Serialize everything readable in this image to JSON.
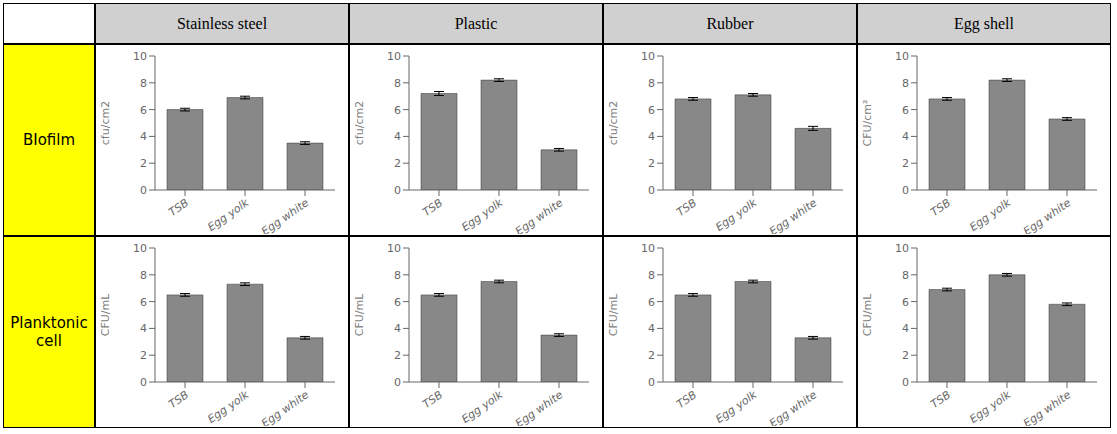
{
  "chart_data": [
    {
      "type": "bar",
      "title": "Stainless steel",
      "annotations": [
        "BIofilm"
      ],
      "categories": [
        "TSB",
        "Egg yolk",
        "Egg white"
      ],
      "values": [
        6.0,
        6.9,
        3.5
      ],
      "errors": [
        0.1,
        0.1,
        0.1
      ],
      "color": "#888888",
      "ylabel": "cfu/cm2",
      "ylim": [
        0,
        10
      ],
      "yticks": [
        0,
        2,
        4,
        6,
        8,
        10
      ]
    },
    {
      "type": "bar",
      "title": "Plastic",
      "categories": [
        "TSB",
        "Egg yolk",
        "Egg white"
      ],
      "values": [
        7.2,
        8.2,
        3.0
      ],
      "errors": [
        0.15,
        0.1,
        0.1
      ],
      "color": "#888888",
      "ylabel": "cfu/cm2",
      "ylim": [
        0,
        10
      ],
      "yticks": [
        0,
        2,
        4,
        6,
        8,
        10
      ]
    },
    {
      "type": "bar",
      "title": "Rubber",
      "categories": [
        "TSB",
        "Egg yolk",
        "Egg white"
      ],
      "values": [
        6.8,
        7.1,
        4.6
      ],
      "errors": [
        0.1,
        0.1,
        0.15
      ],
      "color": "#888888",
      "ylabel": "cfu/cm2",
      "ylim": [
        0,
        10
      ],
      "yticks": [
        0,
        2,
        4,
        6,
        8,
        10
      ]
    },
    {
      "type": "bar",
      "title": "Egg shell",
      "categories": [
        "TSB",
        "Egg yolk",
        "Egg white"
      ],
      "values": [
        6.8,
        8.2,
        5.3
      ],
      "errors": [
        0.1,
        0.1,
        0.1
      ],
      "color": "#888888",
      "ylabel": "CFU/cm²",
      "ylim": [
        0,
        10
      ],
      "yticks": [
        0,
        2,
        4,
        6,
        8,
        10
      ]
    },
    {
      "type": "bar",
      "annotations": [
        "Planktonic\ncell"
      ],
      "categories": [
        "TSB",
        "Egg yolk",
        "Egg white"
      ],
      "values": [
        6.5,
        7.3,
        3.3
      ],
      "errors": [
        0.1,
        0.1,
        0.1
      ],
      "color": "#888888",
      "ylabel": "CFU/mL",
      "ylim": [
        0,
        10
      ],
      "yticks": [
        0,
        2,
        4,
        6,
        8,
        10
      ]
    },
    {
      "type": "bar",
      "categories": [
        "TSB",
        "Egg yolk",
        "Egg white"
      ],
      "values": [
        6.5,
        7.5,
        3.5
      ],
      "errors": [
        0.1,
        0.1,
        0.1
      ],
      "color": "#888888",
      "ylabel": "CFU/mL",
      "ylim": [
        0,
        10
      ],
      "yticks": [
        0,
        2,
        4,
        6,
        8,
        10
      ]
    },
    {
      "type": "bar",
      "categories": [
        "TSB",
        "Egg yolk",
        "Egg white"
      ],
      "values": [
        6.5,
        7.5,
        3.3
      ],
      "errors": [
        0.1,
        0.1,
        0.1
      ],
      "color": "#888888",
      "ylabel": "CFU/mL",
      "ylim": [
        0,
        10
      ],
      "yticks": [
        0,
        2,
        4,
        6,
        8,
        10
      ]
    },
    {
      "type": "bar",
      "categories": [
        "TSB",
        "Egg yolk",
        "Egg white"
      ],
      "values": [
        6.9,
        8.0,
        5.8
      ],
      "errors": [
        0.1,
        0.1,
        0.1
      ],
      "color": "#888888",
      "ylabel": "CFU/mL",
      "ylim": [
        0,
        10
      ],
      "yticks": [
        0,
        2,
        4,
        6,
        8,
        10
      ]
    }
  ]
}
